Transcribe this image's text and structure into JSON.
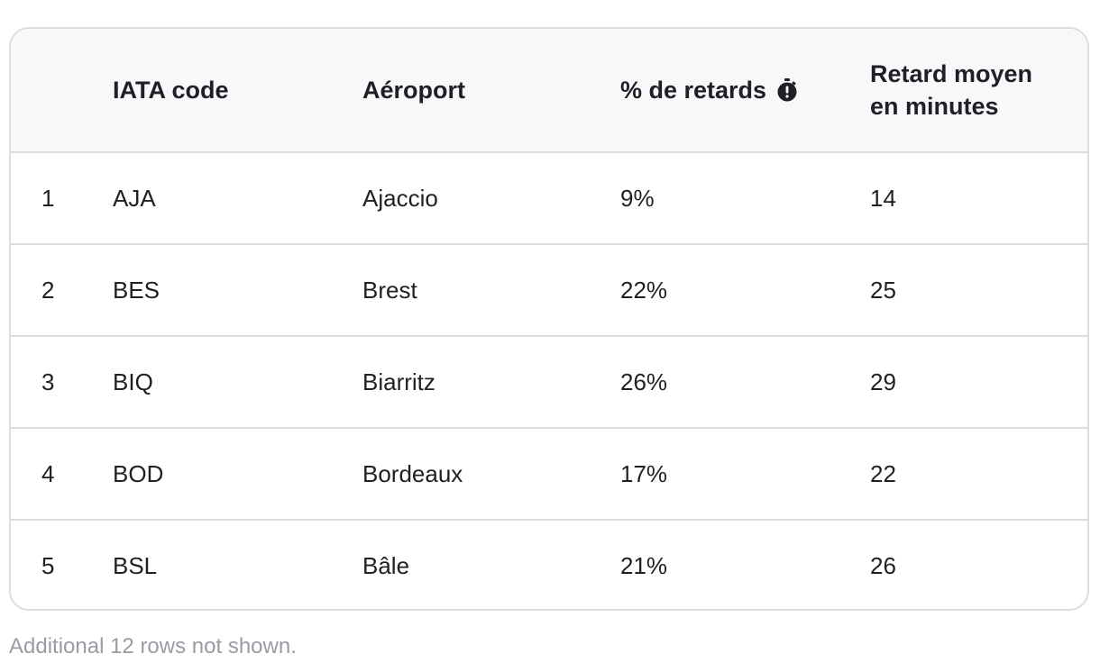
{
  "table": {
    "headers": {
      "rank": "",
      "iata": "IATA code",
      "airport": "Aéroport",
      "pct_delays": "% de retards",
      "avg_delay_line1": "Retard moyen",
      "avg_delay_line2": "en minutes"
    },
    "icons": {
      "pct_delays_header": "timer-icon"
    },
    "rows": [
      {
        "rank": "1",
        "iata": "AJA",
        "airport": "Ajaccio",
        "pct": "9%",
        "avg": "14"
      },
      {
        "rank": "2",
        "iata": "BES",
        "airport": "Brest",
        "pct": "22%",
        "avg": "25"
      },
      {
        "rank": "3",
        "iata": "BIQ",
        "airport": "Biarritz",
        "pct": "26%",
        "avg": "29"
      },
      {
        "rank": "4",
        "iata": "BOD",
        "airport": "Bordeaux",
        "pct": "17%",
        "avg": "22"
      },
      {
        "rank": "5",
        "iata": "BSL",
        "airport": "Bâle",
        "pct": "21%",
        "avg": "26"
      }
    ]
  },
  "footer": {
    "note": "Additional 12 rows not shown."
  },
  "colors": {
    "border": "#dcdde1",
    "header_bg": "#f7f8fa",
    "text": "#1f2024",
    "muted": "#9a9ca3"
  }
}
